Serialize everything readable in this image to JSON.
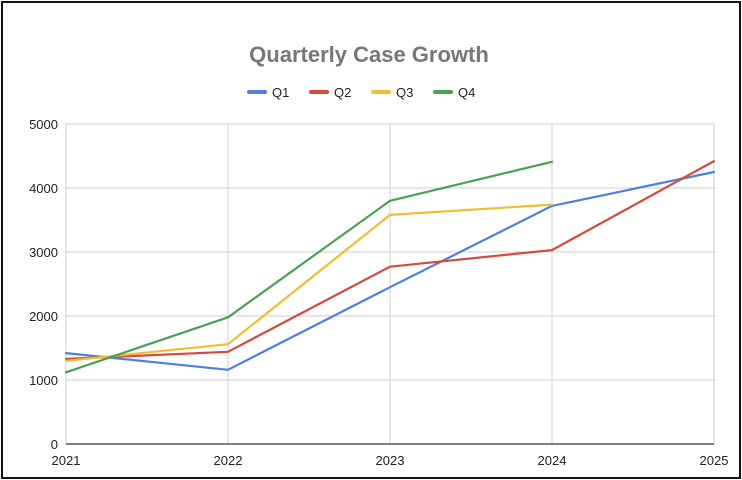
{
  "chart_data": {
    "type": "line",
    "title": "Quarterly Case Growth",
    "xlabel": "",
    "ylabel": "",
    "categories": [
      "2021",
      "2022",
      "2023",
      "2024",
      "2025"
    ],
    "ylim": [
      0,
      5000
    ],
    "yticks": [
      0,
      1000,
      2000,
      3000,
      4000,
      5000
    ],
    "grid": true,
    "legend_position": "top",
    "series": [
      {
        "name": "Q1",
        "color": "#4f7fe3",
        "values": [
          1420,
          1160,
          2450,
          3720,
          4250
        ]
      },
      {
        "name": "Q2",
        "color": "#d44a3c",
        "values": [
          1330,
          1440,
          2770,
          3030,
          4420
        ]
      },
      {
        "name": "Q3",
        "color": "#f0be30",
        "values": [
          1300,
          1560,
          3580,
          3740,
          null
        ]
      },
      {
        "name": "Q4",
        "color": "#4aa151",
        "values": [
          1120,
          1980,
          3800,
          4410,
          null
        ]
      }
    ]
  }
}
